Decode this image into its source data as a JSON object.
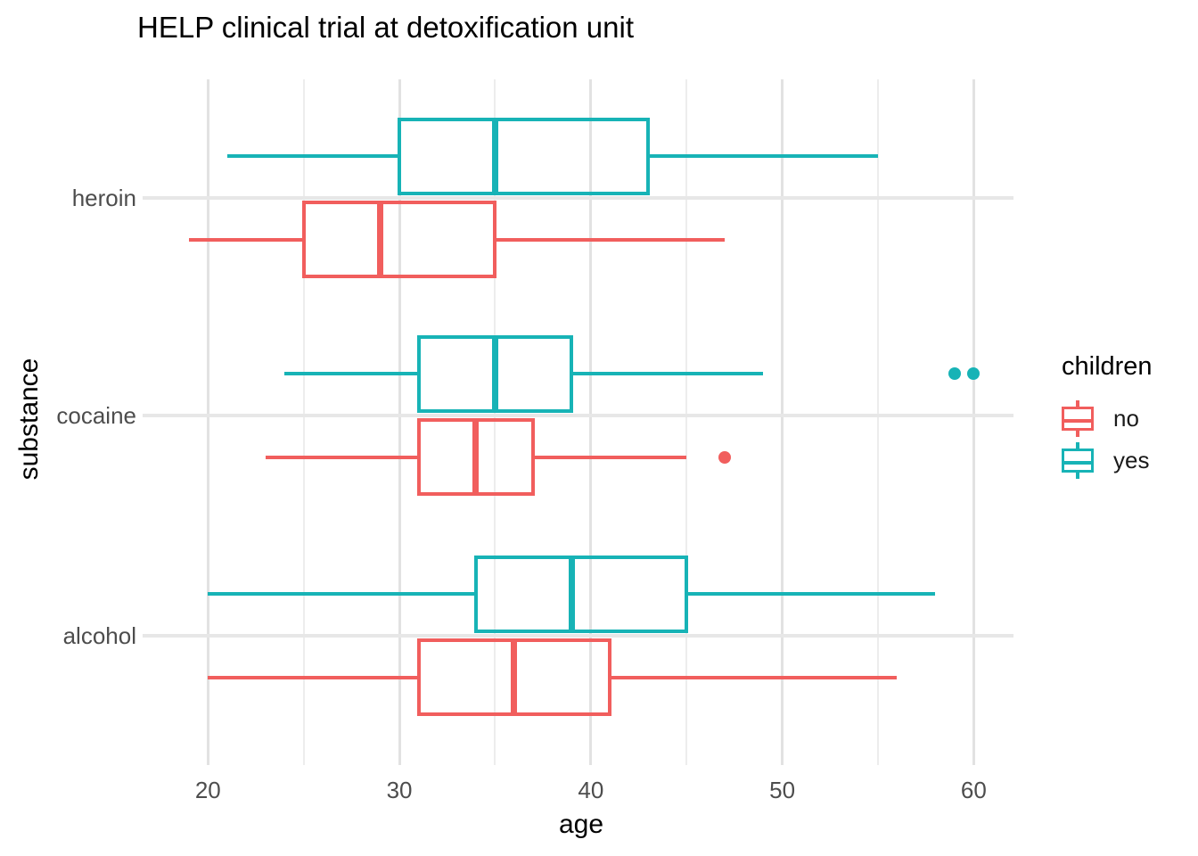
{
  "chart_data": {
    "type": "boxplot",
    "orientation": "horizontal",
    "title": "HELP clinical trial at detoxification unit",
    "xlabel": "age",
    "ylabel": "substance",
    "x_ticks": [
      20,
      30,
      40,
      50,
      60
    ],
    "x_minor_ticks": [
      25,
      35,
      45,
      55
    ],
    "xlim": [
      17,
      62
    ],
    "categories": [
      "heroin",
      "cocaine",
      "alcohol"
    ],
    "grid": {
      "major_color": "#e2e2e2",
      "minor_color": "#ededed",
      "category_color": "#e7e7e7",
      "background": "#ffffff"
    },
    "legend": {
      "title": "children",
      "position": "right",
      "entries": [
        {
          "label": "no",
          "color": "#F15E5D"
        },
        {
          "label": "yes",
          "color": "#17B3B6"
        }
      ]
    },
    "series": [
      {
        "name": "yes",
        "color": "#17B3B6",
        "boxes": [
          {
            "category": "heroin",
            "min": 21,
            "q1": 30,
            "median": 35,
            "q3": 43,
            "max": 55,
            "outliers": []
          },
          {
            "category": "cocaine",
            "min": 24,
            "q1": 31,
            "median": 35,
            "q3": 39,
            "max": 49,
            "outliers": [
              59,
              60
            ]
          },
          {
            "category": "alcohol",
            "min": 20,
            "q1": 34,
            "median": 39,
            "q3": 45,
            "max": 58,
            "outliers": []
          }
        ]
      },
      {
        "name": "no",
        "color": "#F15E5D",
        "boxes": [
          {
            "category": "heroin",
            "min": 19,
            "q1": 25,
            "median": 29,
            "q3": 35,
            "max": 47,
            "outliers": []
          },
          {
            "category": "cocaine",
            "min": 23,
            "q1": 31,
            "median": 34,
            "q3": 37,
            "max": 45,
            "outliers": [
              47
            ]
          },
          {
            "category": "alcohol",
            "min": 20,
            "q1": 31,
            "median": 36,
            "q3": 41,
            "max": 56,
            "outliers": []
          }
        ]
      }
    ]
  }
}
